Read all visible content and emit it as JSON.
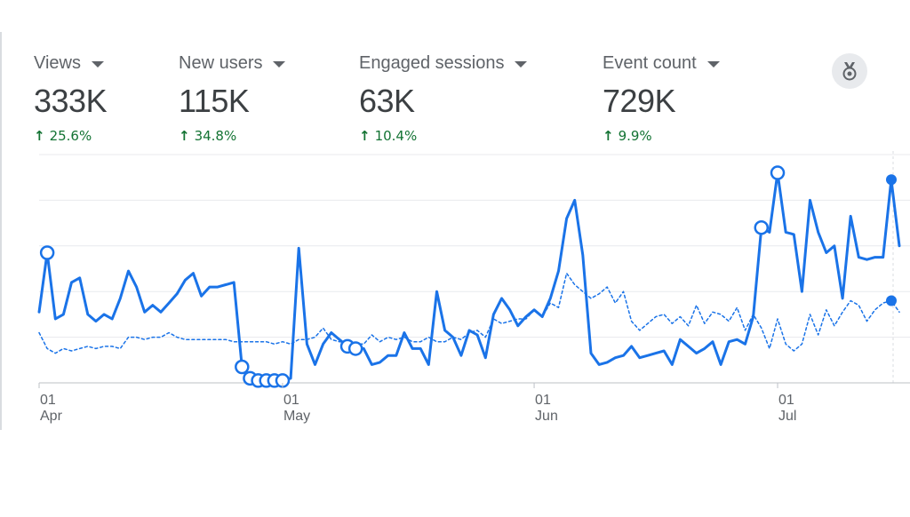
{
  "tabs": [
    {
      "label": "Views",
      "value": "333K",
      "change": "25.6%",
      "active": true
    },
    {
      "label": "New users",
      "value": "115K",
      "change": "34.8%",
      "active": false
    },
    {
      "label": "Engaged sessions",
      "value": "63K",
      "change": "10.4%",
      "active": false
    },
    {
      "label": "Event count",
      "value": "729K",
      "change": "9.9%",
      "active": false
    }
  ],
  "icons": {
    "trend": "arrow-up-icon",
    "dropdown": "caret-down-icon",
    "insights": "insights-badge-icon"
  },
  "colors": {
    "accent": "#1a73e8",
    "positive": "#137333",
    "grid": "#e8eaed"
  },
  "chart_data": {
    "type": "line",
    "title": "",
    "xlabel": "",
    "ylabel": "",
    "ylim": [
      0,
      5
    ],
    "x_tick_labels": [
      {
        "day": "01",
        "month": "Apr"
      },
      {
        "day": "01",
        "month": "May"
      },
      {
        "day": "01",
        "month": "Jun"
      },
      {
        "day": "01",
        "month": "Jul"
      }
    ],
    "grid": true,
    "legend": "none",
    "series": [
      {
        "style": "solid",
        "values": [
          1.55,
          2.85,
          1.4,
          1.5,
          2.2,
          2.3,
          1.5,
          1.35,
          1.5,
          1.4,
          1.85,
          2.45,
          2.1,
          1.55,
          1.7,
          1.55,
          1.75,
          1.95,
          2.25,
          2.4,
          1.9,
          2.1,
          2.1,
          2.15,
          2.2,
          0.35,
          0.1,
          0.05,
          0.05,
          0.05,
          0.05,
          0.1,
          2.95,
          0.85,
          0.4,
          0.85,
          1.1,
          0.95,
          0.8,
          0.75,
          0.75,
          0.4,
          0.45,
          0.6,
          0.6,
          1.1,
          0.75,
          0.75,
          0.4,
          2.0,
          1.15,
          1.0,
          0.6,
          1.15,
          1.05,
          0.55,
          1.5,
          1.85,
          1.6,
          1.25,
          1.45,
          1.6,
          1.45,
          1.85,
          2.45,
          3.6,
          4.0,
          2.8,
          0.65,
          0.4,
          0.45,
          0.55,
          0.6,
          0.8,
          0.55,
          0.6,
          0.65,
          0.7,
          0.4,
          0.95,
          0.8,
          0.65,
          0.75,
          0.9,
          0.4,
          0.9,
          0.95,
          0.85,
          1.45,
          3.4,
          3.3,
          4.6,
          3.3,
          3.25,
          2.0,
          4.0,
          3.3,
          2.85,
          3.0,
          1.85,
          3.65,
          2.75,
          2.7,
          2.75,
          2.75,
          4.45,
          3.0
        ]
      },
      {
        "style": "dotted",
        "values": [
          1.1,
          0.75,
          0.65,
          0.75,
          0.7,
          0.75,
          0.8,
          0.75,
          0.8,
          0.8,
          0.75,
          1.0,
          1.0,
          0.95,
          1.0,
          1.0,
          1.1,
          1.0,
          0.95,
          0.95,
          0.95,
          0.95,
          0.95,
          0.95,
          0.9,
          0.9,
          0.9,
          0.9,
          0.9,
          0.85,
          0.9,
          0.85,
          0.95,
          0.95,
          1.0,
          1.2,
          0.95,
          0.9,
          0.9,
          0.85,
          0.85,
          1.05,
          0.9,
          1.0,
          0.95,
          1.0,
          0.9,
          0.9,
          1.0,
          0.9,
          0.9,
          1.0,
          0.95,
          1.1,
          1.15,
          1.0,
          1.4,
          1.3,
          1.35,
          1.4,
          1.4,
          1.6,
          1.45,
          1.75,
          1.65,
          2.4,
          2.15,
          2.0,
          1.85,
          1.95,
          2.1,
          1.75,
          2.0,
          1.35,
          1.15,
          1.3,
          1.45,
          1.5,
          1.3,
          1.45,
          1.25,
          1.7,
          1.3,
          1.55,
          1.5,
          1.35,
          1.65,
          1.15,
          1.5,
          1.2,
          0.75,
          1.4,
          0.85,
          0.7,
          0.85,
          1.5,
          1.05,
          1.6,
          1.25,
          1.55,
          1.8,
          1.7,
          1.35,
          1.6,
          1.75,
          1.8,
          1.55
        ]
      }
    ]
  }
}
